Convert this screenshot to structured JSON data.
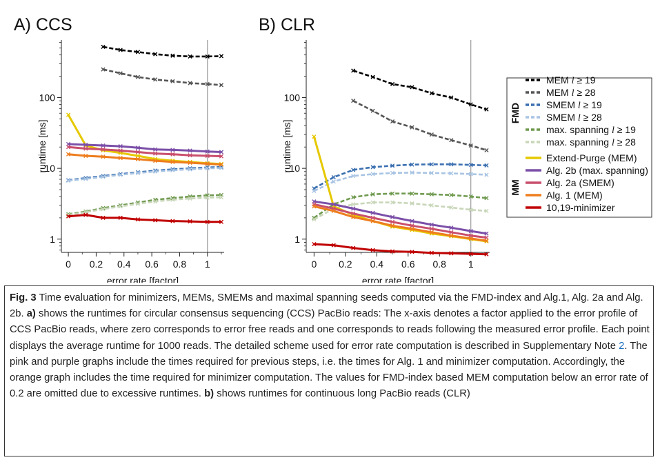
{
  "panels": [
    {
      "title": "A) CCS",
      "xlabel": "error rate [factor]",
      "ylabel": "runtime [ms]",
      "xticks": [
        "0",
        "0.2",
        "0.4",
        "0.6",
        "0.8",
        "1"
      ],
      "yticks": [
        "1",
        "10",
        "100"
      ]
    },
    {
      "title": "B) CLR",
      "xlabel": "error rate [factor]",
      "ylabel": "runtime [ms]",
      "xticks": [
        "0",
        "0.2",
        "0.4",
        "0.6",
        "0.8",
        "1"
      ],
      "yticks": [
        "1",
        "10",
        "100"
      ]
    }
  ],
  "legend": {
    "fmd_label": "FMD",
    "mm_label": "MM",
    "entries": [
      {
        "prefix": "MEM ",
        "italic": "l",
        "suffix": " ≥ 19"
      },
      {
        "prefix": "MEM ",
        "italic": "l",
        "suffix": " ≥ 28"
      },
      {
        "prefix": "SMEM ",
        "italic": "l",
        "suffix": " ≥ 19"
      },
      {
        "prefix": "SMEM ",
        "italic": "l",
        "suffix": " ≥ 28"
      },
      {
        "prefix": "max. spanning ",
        "italic": "l",
        "suffix": " ≥ 19"
      },
      {
        "prefix": "max. spanning ",
        "italic": "l",
        "suffix": " ≥ 28"
      },
      {
        "prefix": "Extend-Purge (MEM)",
        "italic": "",
        "suffix": ""
      },
      {
        "prefix": "Alg. 2b (max. spanning)",
        "italic": "",
        "suffix": ""
      },
      {
        "prefix": "Alg. 2a (SMEM)",
        "italic": "",
        "suffix": ""
      },
      {
        "prefix": "Alg. 1 (MEM)",
        "italic": "",
        "suffix": ""
      },
      {
        "prefix": "10,19-minimizer",
        "italic": "",
        "suffix": ""
      }
    ]
  },
  "caption": {
    "fig_label": "Fig. 3",
    "t1": " Time evaluation for minimizers, MEMs, SMEMs and maximal spanning seeds computed via the FMD-index and Alg.1, Alg. 2a and Alg. 2b. ",
    "a_label": "a)",
    "t2": " shows the runtimes for circular consensus sequencing (CCS) PacBio reads: The x-axis denotes a factor applied to the error profile of CCS PacBio reads, where zero corresponds to error free reads and one corresponds to reads following the measured error profile. Each point displays the average runtime for 1000 reads. The detailed scheme used for error rate computation is described in Supplementary Note ",
    "note_ref": "2",
    "t3": ". The pink and purple graphs include the times required for previous steps, i.e. the times for Alg. 1 and minimizer computation. Accordingly, the orange graph includes the time required for minimizer computation. The values for FMD-index based MEM computation below an error rate of 0.2 are omitted due to excessive runtimes. ",
    "b_label": "b)",
    "t4": " shows runtimes for continuous long PacBio reads (CLR)"
  },
  "chart_data": [
    {
      "type": "line",
      "title": "A) CCS",
      "xlabel": "error rate [factor]",
      "ylabel": "runtime [ms]",
      "yscale": "log",
      "xlim": [
        -0.05,
        1.12
      ],
      "ylim": [
        0.65,
        650
      ],
      "vline_x": 1,
      "series": [
        {
          "name": "MEM l ≥ 19",
          "color": "#000000",
          "dash": true,
          "x": [
            0.25,
            0.375,
            0.5,
            0.625,
            0.75,
            0.875,
            1.0,
            1.1
          ],
          "values": [
            520,
            470,
            440,
            410,
            390,
            380,
            380,
            385
          ]
        },
        {
          "name": "MEM l ≥ 28",
          "color": "#555555",
          "dash": true,
          "x": [
            0.25,
            0.375,
            0.5,
            0.625,
            0.75,
            0.875,
            1.0,
            1.1
          ],
          "values": [
            250,
            220,
            195,
            180,
            170,
            160,
            155,
            150
          ]
        },
        {
          "name": "SMEM l ≥ 19",
          "color": "#3a6fb0",
          "dash": true,
          "x": [
            0,
            0.125,
            0.25,
            0.375,
            0.5,
            0.625,
            0.75,
            0.875,
            1.0,
            1.1
          ],
          "values": [
            6.8,
            7.3,
            7.8,
            8.3,
            8.8,
            9.3,
            9.7,
            10.0,
            10.3,
            10.5
          ]
        },
        {
          "name": "SMEM l ≥ 28",
          "color": "#a8c4e3",
          "dash": true,
          "x": [
            0,
            0.125,
            0.25,
            0.375,
            0.5,
            0.625,
            0.75,
            0.875,
            1.0,
            1.1
          ],
          "values": [
            6.7,
            7.1,
            7.6,
            8.1,
            8.6,
            9.0,
            9.4,
            9.7,
            10.0,
            10.1
          ]
        },
        {
          "name": "max. spanning l ≥ 19",
          "color": "#6f9a4f",
          "dash": true,
          "x": [
            0,
            0.125,
            0.25,
            0.375,
            0.5,
            0.625,
            0.75,
            0.875,
            1.0,
            1.1
          ],
          "values": [
            2.25,
            2.45,
            2.75,
            3.0,
            3.3,
            3.6,
            3.8,
            4.0,
            4.15,
            4.2
          ]
        },
        {
          "name": "max. spanning l ≥ 28",
          "color": "#c8d6b8",
          "dash": true,
          "x": [
            0,
            0.125,
            0.25,
            0.375,
            0.5,
            0.625,
            0.75,
            0.875,
            1.0,
            1.1
          ],
          "values": [
            2.2,
            2.4,
            2.65,
            2.9,
            3.15,
            3.4,
            3.6,
            3.75,
            3.85,
            3.9
          ]
        },
        {
          "name": "Extend-Purge (MEM)",
          "color": "#e6c800",
          "dash": false,
          "x": [
            0,
            0.125,
            0.25,
            0.375,
            0.5,
            0.625,
            0.75,
            0.875,
            1.0,
            1.1
          ],
          "values": [
            57,
            21,
            18,
            16.5,
            15,
            13.5,
            12.8,
            12.3,
            11.8,
            11.5
          ]
        },
        {
          "name": "Alg. 2b (max. spanning)",
          "color": "#7b4fa8",
          "dash": false,
          "x": [
            0,
            0.125,
            0.25,
            0.375,
            0.5,
            0.625,
            0.75,
            0.875,
            1.0,
            1.1
          ],
          "values": [
            22,
            21.5,
            21,
            20.5,
            19.5,
            18.5,
            18.2,
            17.8,
            17.3,
            17
          ]
        },
        {
          "name": "Alg. 2a (SMEM)",
          "color": "#c94f6d",
          "dash": false,
          "x": [
            0,
            0.125,
            0.25,
            0.375,
            0.5,
            0.625,
            0.75,
            0.875,
            1.0,
            1.1
          ],
          "values": [
            20,
            19,
            18.5,
            17.8,
            17,
            16.2,
            15.8,
            15.3,
            15,
            14.8
          ]
        },
        {
          "name": "Alg. 1 (MEM)",
          "color": "#ee7d1e",
          "dash": false,
          "x": [
            0,
            0.125,
            0.25,
            0.375,
            0.5,
            0.625,
            0.75,
            0.875,
            1.0,
            1.1
          ],
          "values": [
            15.8,
            15,
            14.6,
            14,
            13.5,
            12.8,
            12.3,
            12,
            11.6,
            11.3
          ]
        },
        {
          "name": "10,19-minimizer",
          "color": "#c00000",
          "dash": false,
          "x": [
            0,
            0.125,
            0.25,
            0.375,
            0.5,
            0.625,
            0.75,
            0.875,
            1.0,
            1.1
          ],
          "values": [
            2.1,
            2.2,
            2.0,
            2.0,
            1.9,
            1.85,
            1.8,
            1.78,
            1.75,
            1.75
          ]
        }
      ]
    },
    {
      "type": "line",
      "title": "B) CLR",
      "xlabel": "error rate [factor]",
      "ylabel": "runtime [ms]",
      "yscale": "log",
      "xlim": [
        -0.05,
        1.12
      ],
      "ylim": [
        0.65,
        650
      ],
      "vline_x": 1,
      "series": [
        {
          "name": "MEM l ≥ 19",
          "color": "#000000",
          "dash": true,
          "x": [
            0.25,
            0.375,
            0.5,
            0.625,
            0.75,
            0.875,
            1.0,
            1.1
          ],
          "values": [
            240,
            195,
            155,
            140,
            115,
            100,
            80,
            68
          ]
        },
        {
          "name": "MEM l ≥ 28",
          "color": "#555555",
          "dash": true,
          "x": [
            0.25,
            0.375,
            0.5,
            0.625,
            0.75,
            0.875,
            1.0,
            1.1
          ],
          "values": [
            90,
            65,
            46,
            38,
            30,
            25,
            21,
            18
          ]
        },
        {
          "name": "SMEM l ≥ 19",
          "color": "#3a6fb0",
          "dash": true,
          "x": [
            0,
            0.125,
            0.25,
            0.375,
            0.5,
            0.625,
            0.75,
            0.875,
            1.0,
            1.1
          ],
          "values": [
            5.2,
            7.5,
            9.5,
            10.4,
            10.9,
            11.3,
            11.4,
            11.4,
            11.2,
            11
          ]
        },
        {
          "name": "SMEM l ≥ 28",
          "color": "#a8c4e3",
          "dash": true,
          "x": [
            0,
            0.125,
            0.25,
            0.375,
            0.5,
            0.625,
            0.75,
            0.875,
            1.0,
            1.1
          ],
          "values": [
            4.8,
            6.5,
            7.8,
            8.3,
            8.6,
            8.7,
            8.6,
            8.5,
            8.3,
            8.1
          ]
        },
        {
          "name": "max. spanning l ≥ 19",
          "color": "#6f9a4f",
          "dash": true,
          "x": [
            0,
            0.125,
            0.25,
            0.375,
            0.5,
            0.625,
            0.75,
            0.875,
            1.0,
            1.1
          ],
          "values": [
            2.0,
            3.1,
            3.9,
            4.3,
            4.4,
            4.4,
            4.3,
            4.2,
            4.0,
            3.8
          ]
        },
        {
          "name": "max. spanning l ≥ 28",
          "color": "#c8d6b8",
          "dash": true,
          "x": [
            0,
            0.125,
            0.25,
            0.375,
            0.5,
            0.625,
            0.75,
            0.875,
            1.0,
            1.1
          ],
          "values": [
            1.9,
            2.7,
            3.1,
            3.3,
            3.3,
            3.2,
            3.0,
            2.8,
            2.6,
            2.5
          ]
        },
        {
          "name": "Extend-Purge (MEM)",
          "color": "#e6c800",
          "dash": false,
          "x": [
            0,
            0.125,
            0.25,
            0.375,
            0.5,
            0.625,
            0.75,
            0.875,
            1.0,
            1.1
          ],
          "values": [
            28,
            2.9,
            2.2,
            1.8,
            1.5,
            1.35,
            1.2,
            1.1,
            1.0,
            0.93
          ]
        },
        {
          "name": "Alg. 2b (max. spanning)",
          "color": "#7b4fa8",
          "dash": false,
          "x": [
            0,
            0.125,
            0.25,
            0.375,
            0.5,
            0.625,
            0.75,
            0.875,
            1.0,
            1.1
          ],
          "values": [
            3.4,
            3.1,
            2.7,
            2.35,
            2.05,
            1.8,
            1.6,
            1.45,
            1.3,
            1.2
          ]
        },
        {
          "name": "Alg. 2a (SMEM)",
          "color": "#c94f6d",
          "dash": false,
          "x": [
            0,
            0.125,
            0.25,
            0.375,
            0.5,
            0.625,
            0.75,
            0.875,
            1.0,
            1.1
          ],
          "values": [
            3.1,
            2.7,
            2.3,
            2.0,
            1.75,
            1.55,
            1.4,
            1.25,
            1.12,
            1.05
          ]
        },
        {
          "name": "Alg. 1 (MEM)",
          "color": "#ee7d1e",
          "dash": false,
          "x": [
            0,
            0.125,
            0.25,
            0.375,
            0.5,
            0.625,
            0.75,
            0.875,
            1.0,
            1.1
          ],
          "values": [
            2.9,
            2.5,
            2.05,
            1.8,
            1.55,
            1.4,
            1.25,
            1.12,
            1.02,
            0.95
          ]
        },
        {
          "name": "10,19-minimizer",
          "color": "#c00000",
          "dash": false,
          "x": [
            0,
            0.125,
            0.25,
            0.375,
            0.5,
            0.625,
            0.75,
            0.875,
            1.0,
            1.1
          ],
          "values": [
            0.85,
            0.82,
            0.75,
            0.7,
            0.67,
            0.66,
            0.64,
            0.63,
            0.62,
            0.61
          ]
        }
      ]
    }
  ]
}
